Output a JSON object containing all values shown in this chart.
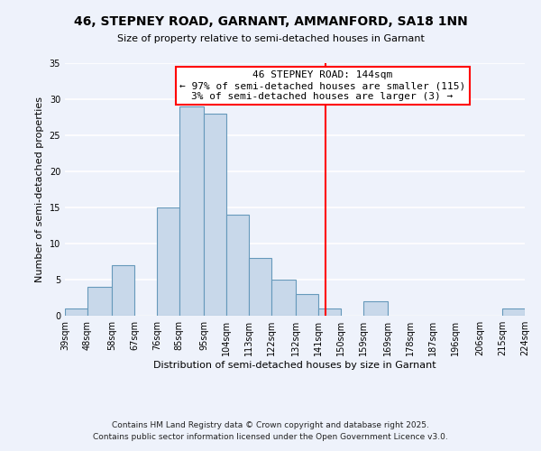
{
  "title": "46, STEPNEY ROAD, GARNANT, AMMANFORD, SA18 1NN",
  "subtitle": "Size of property relative to semi-detached houses in Garnant",
  "xlabel": "Distribution of semi-detached houses by size in Garnant",
  "ylabel": "Number of semi-detached properties",
  "bin_edges": [
    39,
    48,
    58,
    67,
    76,
    85,
    95,
    104,
    113,
    122,
    132,
    141,
    150,
    159,
    169,
    178,
    187,
    196,
    206,
    215,
    224
  ],
  "counts": [
    1,
    4,
    7,
    0,
    15,
    29,
    28,
    14,
    8,
    5,
    3,
    1,
    0,
    2,
    0,
    0,
    0,
    0,
    0,
    1
  ],
  "bar_color": "#c8d8ea",
  "bar_edge_color": "#6699bb",
  "vline_x": 144,
  "vline_color": "red",
  "annotation_title": "46 STEPNEY ROAD: 144sqm",
  "annotation_line1": "← 97% of semi-detached houses are smaller (115)",
  "annotation_line2": "3% of semi-detached houses are larger (3) →",
  "annotation_box_color": "white",
  "annotation_box_edge": "red",
  "ylim": [
    0,
    35
  ],
  "yticks": [
    0,
    5,
    10,
    15,
    20,
    25,
    30,
    35
  ],
  "tick_labels": [
    "39sqm",
    "48sqm",
    "58sqm",
    "67sqm",
    "76sqm",
    "85sqm",
    "95sqm",
    "104sqm",
    "113sqm",
    "122sqm",
    "132sqm",
    "141sqm",
    "150sqm",
    "159sqm",
    "169sqm",
    "178sqm",
    "187sqm",
    "196sqm",
    "206sqm",
    "215sqm",
    "224sqm"
  ],
  "footer1": "Contains HM Land Registry data © Crown copyright and database right 2025.",
  "footer2": "Contains public sector information licensed under the Open Government Licence v3.0.",
  "bg_color": "#eef2fb",
  "grid_color": "white",
  "title_fontsize": 10,
  "subtitle_fontsize": 8,
  "axis_label_fontsize": 8,
  "tick_fontsize": 7,
  "annotation_fontsize": 8,
  "footer_fontsize": 6.5
}
